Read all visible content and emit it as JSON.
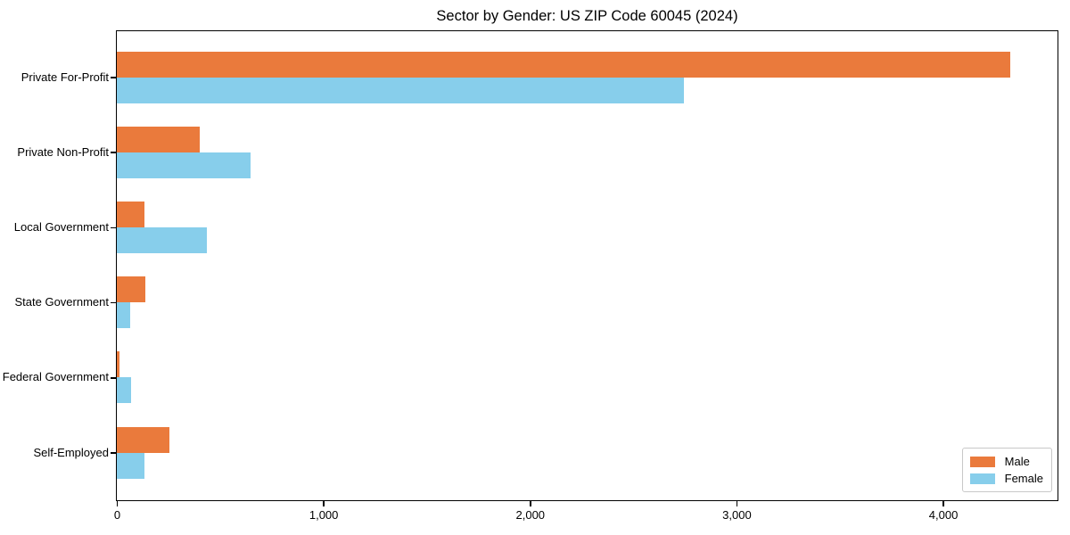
{
  "chart_data": {
    "type": "bar",
    "orientation": "horizontal",
    "title": "Sector by Gender: US ZIP Code 60045 (2024)",
    "categories": [
      "Private For-Profit",
      "Private Non-Profit",
      "Local Government",
      "State Government",
      "Federal Government",
      "Self-Employed"
    ],
    "series": [
      {
        "name": "Male",
        "color": "#EA7A3C",
        "values": [
          4320,
          400,
          135,
          140,
          15,
          255
        ]
      },
      {
        "name": "Female",
        "color": "#87CEEB",
        "values": [
          2745,
          645,
          435,
          65,
          70,
          135
        ]
      }
    ],
    "xlim": [
      0,
      4550
    ],
    "xticks": [
      0,
      1000,
      2000,
      3000,
      4000
    ],
    "xtick_labels": [
      "0",
      "1,000",
      "2,000",
      "3,000",
      "4,000"
    ],
    "grid": false,
    "legend_position": "lower right",
    "plot_border_color": "#000000",
    "background_color": "#ffffff"
  }
}
